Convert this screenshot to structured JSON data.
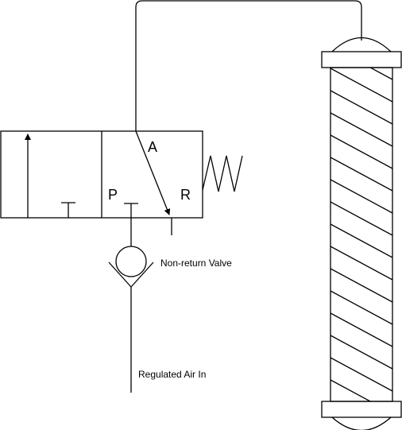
{
  "valve": {
    "port_a": "A",
    "port_p": "P",
    "port_r": "R"
  },
  "labels": {
    "non_return_valve": "Non-return Valve",
    "regulated_air_in": "Regulated Air In"
  },
  "colors": {
    "line": "#000000",
    "background": "#ffffff"
  }
}
